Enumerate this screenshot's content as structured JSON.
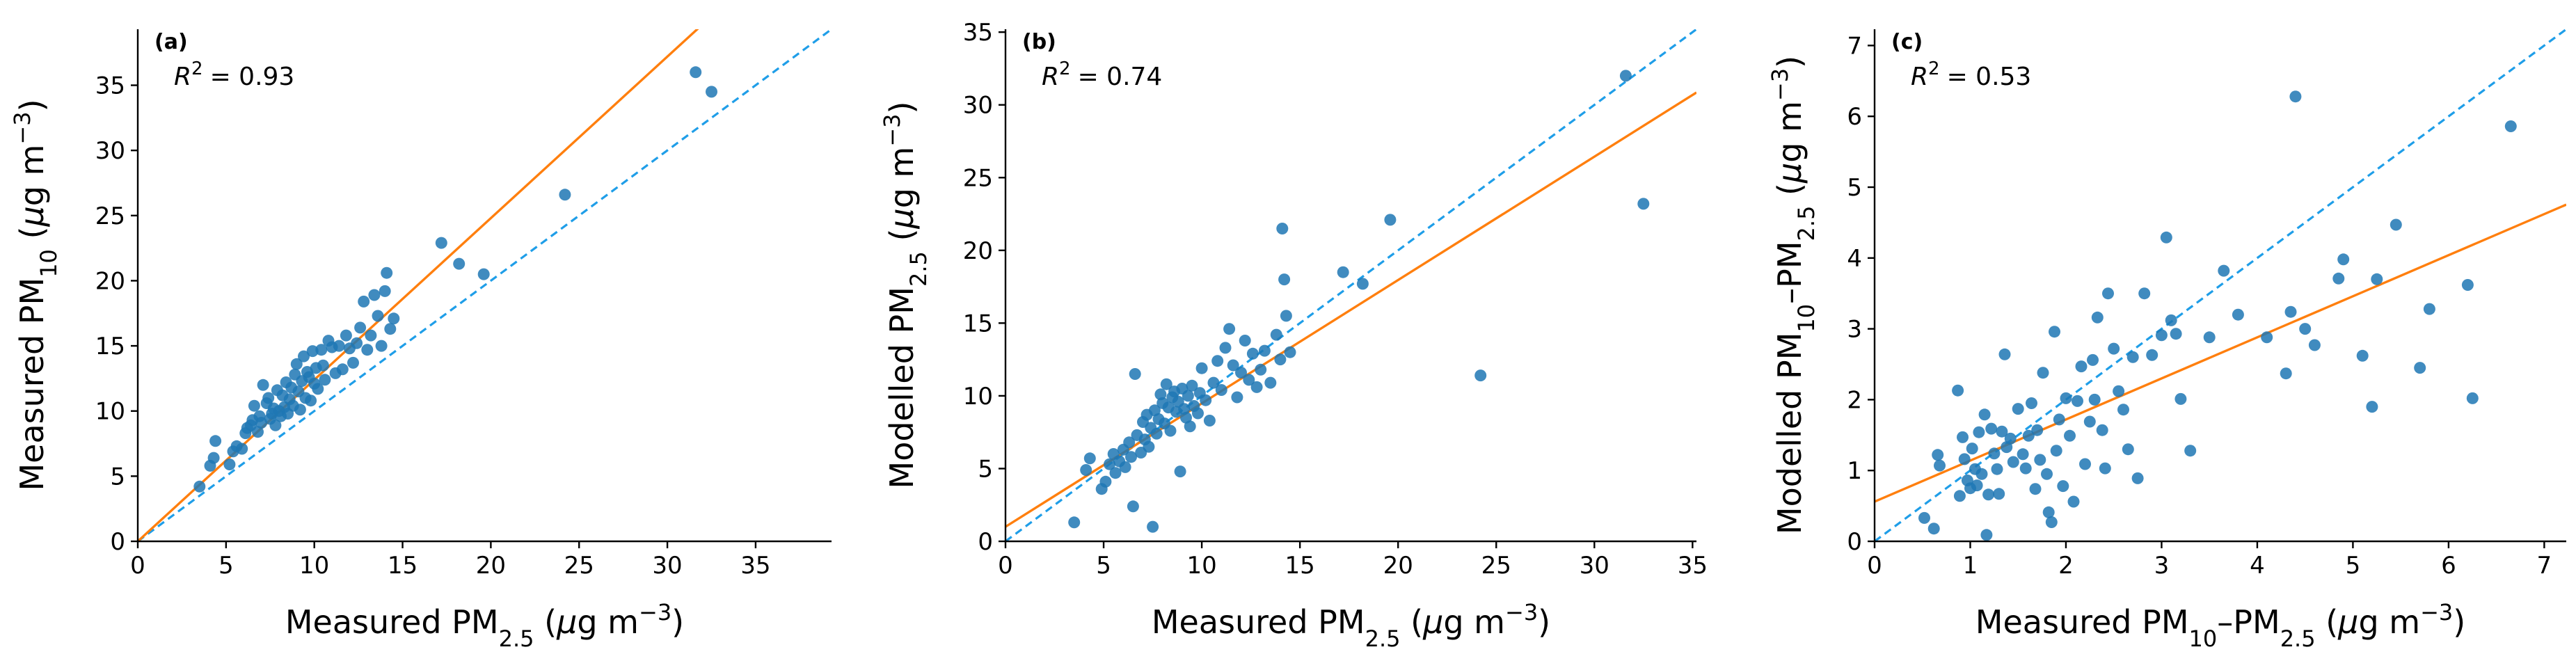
{
  "colors": {
    "points": "#1f77b4",
    "fit_line": "#ff7f0e",
    "one_to_one": "#1f9ee8"
  },
  "chart_data": [
    {
      "type": "scatter",
      "panel_label": "(a)",
      "r2_symbol": "R",
      "r2_value": "= 0.93",
      "xlabel": {
        "pre": "Measured PM",
        "sub": "2.5",
        "post": " (",
        "mu": "μ",
        "unit": "g m",
        "sup": "−3",
        "close": ")"
      },
      "ylabel": {
        "pre": "Measured PM",
        "sub": "10",
        "post": " (",
        "mu": "μ",
        "unit": "g m",
        "sup": "−3",
        "close": ")"
      },
      "xlim": [
        0,
        39.3
      ],
      "ylim": [
        0,
        39.3
      ],
      "xticks": [
        0,
        5,
        10,
        15,
        20,
        25,
        30,
        35
      ],
      "yticks": [
        0,
        5,
        10,
        15,
        20,
        25,
        30,
        35
      ],
      "fit_line": {
        "slope": 1.24,
        "intercept": 0.0
      },
      "one_to_one": true,
      "points": [
        [
          3.5,
          4.2
        ],
        [
          4.1,
          5.8
        ],
        [
          4.3,
          6.4
        ],
        [
          4.4,
          7.7
        ],
        [
          5.2,
          5.9
        ],
        [
          5.4,
          6.9
        ],
        [
          5.6,
          7.3
        ],
        [
          5.9,
          7.1
        ],
        [
          6.1,
          8.3
        ],
        [
          6.2,
          8.7
        ],
        [
          6.4,
          8.9
        ],
        [
          6.5,
          9.3
        ],
        [
          6.6,
          10.4
        ],
        [
          6.8,
          8.4
        ],
        [
          6.9,
          9.6
        ],
        [
          7.0,
          9.1
        ],
        [
          7.1,
          12.0
        ],
        [
          7.3,
          10.6
        ],
        [
          7.4,
          11.0
        ],
        [
          7.5,
          9.4
        ],
        [
          7.6,
          9.8
        ],
        [
          7.7,
          10.2
        ],
        [
          7.8,
          8.9
        ],
        [
          7.9,
          11.6
        ],
        [
          8.0,
          10.0
        ],
        [
          8.1,
          9.6
        ],
        [
          8.2,
          11.2
        ],
        [
          8.3,
          10.3
        ],
        [
          8.4,
          12.2
        ],
        [
          8.5,
          9.8
        ],
        [
          8.6,
          10.9
        ],
        [
          8.7,
          11.8
        ],
        [
          8.8,
          10.4
        ],
        [
          8.9,
          12.8
        ],
        [
          9.0,
          13.6
        ],
        [
          9.1,
          11.5
        ],
        [
          9.2,
          10.1
        ],
        [
          9.3,
          12.3
        ],
        [
          9.4,
          14.2
        ],
        [
          9.5,
          11.0
        ],
        [
          9.6,
          13.0
        ],
        [
          9.7,
          12.6
        ],
        [
          9.8,
          10.8
        ],
        [
          9.9,
          14.6
        ],
        [
          10.0,
          12.1
        ],
        [
          10.1,
          13.3
        ],
        [
          10.2,
          11.7
        ],
        [
          10.4,
          14.7
        ],
        [
          10.5,
          13.5
        ],
        [
          10.6,
          12.4
        ],
        [
          10.8,
          15.4
        ],
        [
          11.0,
          14.9
        ],
        [
          11.2,
          12.9
        ],
        [
          11.4,
          15.0
        ],
        [
          11.6,
          13.2
        ],
        [
          11.8,
          15.8
        ],
        [
          12.0,
          14.8
        ],
        [
          12.2,
          13.7
        ],
        [
          12.4,
          15.2
        ],
        [
          12.6,
          16.4
        ],
        [
          12.8,
          18.4
        ],
        [
          13.0,
          14.7
        ],
        [
          13.2,
          15.8
        ],
        [
          13.4,
          18.9
        ],
        [
          13.6,
          17.3
        ],
        [
          13.8,
          15.0
        ],
        [
          14.0,
          19.2
        ],
        [
          14.1,
          20.6
        ],
        [
          14.3,
          16.3
        ],
        [
          14.5,
          17.1
        ],
        [
          17.2,
          22.9
        ],
        [
          18.2,
          21.3
        ],
        [
          19.6,
          20.5
        ],
        [
          24.2,
          26.6
        ],
        [
          31.6,
          36.0
        ],
        [
          32.5,
          34.5
        ]
      ]
    },
    {
      "type": "scatter",
      "panel_label": "(b)",
      "r2_symbol": "R",
      "r2_value": "= 0.74",
      "xlabel": {
        "pre": "Measured PM",
        "sub": "2.5",
        "post": " (",
        "mu": "μ",
        "unit": "g m",
        "sup": "−3",
        "close": ")"
      },
      "ylabel": {
        "pre": "Modelled PM",
        "sub": "2.5",
        "post": " (",
        "mu": "μ",
        "unit": "g m",
        "sup": "−3",
        "close": ")"
      },
      "xlim": [
        0,
        35.2
      ],
      "ylim": [
        0,
        35.2
      ],
      "xticks": [
        0,
        5,
        10,
        15,
        20,
        25,
        30,
        35
      ],
      "yticks": [
        0,
        5,
        10,
        15,
        20,
        25,
        30,
        35
      ],
      "fit_line": {
        "slope": 0.848,
        "intercept": 1.0
      },
      "one_to_one": true,
      "points": [
        [
          3.5,
          1.3
        ],
        [
          4.1,
          4.9
        ],
        [
          4.3,
          5.7
        ],
        [
          4.9,
          3.6
        ],
        [
          5.1,
          4.1
        ],
        [
          5.3,
          5.3
        ],
        [
          5.5,
          6.0
        ],
        [
          5.6,
          4.7
        ],
        [
          5.8,
          5.5
        ],
        [
          6.0,
          6.3
        ],
        [
          6.1,
          5.1
        ],
        [
          6.3,
          6.8
        ],
        [
          6.4,
          5.8
        ],
        [
          6.5,
          2.4
        ],
        [
          6.6,
          11.5
        ],
        [
          6.7,
          7.3
        ],
        [
          6.9,
          6.1
        ],
        [
          7.0,
          8.2
        ],
        [
          7.1,
          7.0
        ],
        [
          7.2,
          8.7
        ],
        [
          7.3,
          6.5
        ],
        [
          7.4,
          7.8
        ],
        [
          7.5,
          1.0
        ],
        [
          7.6,
          9.0
        ],
        [
          7.7,
          7.4
        ],
        [
          7.8,
          8.4
        ],
        [
          7.9,
          10.1
        ],
        [
          8.0,
          9.5
        ],
        [
          8.1,
          8.1
        ],
        [
          8.2,
          10.8
        ],
        [
          8.3,
          9.2
        ],
        [
          8.4,
          7.6
        ],
        [
          8.5,
          9.9
        ],
        [
          8.6,
          10.3
        ],
        [
          8.7,
          8.9
        ],
        [
          8.8,
          9.6
        ],
        [
          8.9,
          4.8
        ],
        [
          9.0,
          10.5
        ],
        [
          9.1,
          9.1
        ],
        [
          9.2,
          8.5
        ],
        [
          9.3,
          10.0
        ],
        [
          9.4,
          7.9
        ],
        [
          9.5,
          10.7
        ],
        [
          9.6,
          9.3
        ],
        [
          9.8,
          8.8
        ],
        [
          9.9,
          10.2
        ],
        [
          10.0,
          11.9
        ],
        [
          10.2,
          9.7
        ],
        [
          10.4,
          8.3
        ],
        [
          10.6,
          10.9
        ],
        [
          10.8,
          12.4
        ],
        [
          11.0,
          10.4
        ],
        [
          11.2,
          13.3
        ],
        [
          11.4,
          14.6
        ],
        [
          11.6,
          12.1
        ],
        [
          11.8,
          9.9
        ],
        [
          12.0,
          11.6
        ],
        [
          12.2,
          13.8
        ],
        [
          12.4,
          11.1
        ],
        [
          12.6,
          12.9
        ],
        [
          12.8,
          10.6
        ],
        [
          13.0,
          11.8
        ],
        [
          13.2,
          13.1
        ],
        [
          13.5,
          10.9
        ],
        [
          13.8,
          14.2
        ],
        [
          14.0,
          12.5
        ],
        [
          14.1,
          21.5
        ],
        [
          14.2,
          18.0
        ],
        [
          14.3,
          15.5
        ],
        [
          14.5,
          13.0
        ],
        [
          17.2,
          18.5
        ],
        [
          18.2,
          17.7
        ],
        [
          19.6,
          22.1
        ],
        [
          24.2,
          11.4
        ],
        [
          31.6,
          32.0
        ],
        [
          32.5,
          23.2
        ]
      ]
    },
    {
      "type": "scatter",
      "panel_label": "(c)",
      "r2_symbol": "R",
      "r2_value": "= 0.53",
      "xlabel": {
        "pre": "Measured PM",
        "sub": "10",
        "mid": "–PM",
        "sub2": "2.5",
        "post": " (",
        "mu": "μ",
        "unit": "g m",
        "sup": "−3",
        "close": ")"
      },
      "ylabel": {
        "pre": "Modelled PM",
        "sub": "10",
        "mid": "–PM",
        "sub2": "2.5",
        "post": " (",
        "mu": "μ",
        "unit": "g m",
        "sup": "−3",
        "close": ")"
      },
      "xlim": [
        0,
        7.23
      ],
      "ylim": [
        0,
        7.23
      ],
      "xticks": [
        0,
        1,
        2,
        3,
        4,
        5,
        6,
        7
      ],
      "yticks": [
        0,
        1,
        2,
        3,
        4,
        5,
        6,
        7
      ],
      "fit_line": {
        "slope": 0.58,
        "intercept": 0.56
      },
      "one_to_one": true,
      "points": [
        [
          0.52,
          0.33
        ],
        [
          0.62,
          0.18
        ],
        [
          0.66,
          1.22
        ],
        [
          0.68,
          1.07
        ],
        [
          0.87,
          2.13
        ],
        [
          0.89,
          0.64
        ],
        [
          0.92,
          1.47
        ],
        [
          0.94,
          1.16
        ],
        [
          0.97,
          0.86
        ],
        [
          1.0,
          0.75
        ],
        [
          1.02,
          1.31
        ],
        [
          1.05,
          1.02
        ],
        [
          1.07,
          0.79
        ],
        [
          1.09,
          1.54
        ],
        [
          1.12,
          0.95
        ],
        [
          1.15,
          1.79
        ],
        [
          1.17,
          0.09
        ],
        [
          1.19,
          0.66
        ],
        [
          1.22,
          1.59
        ],
        [
          1.25,
          1.24
        ],
        [
          1.28,
          1.02
        ],
        [
          1.3,
          0.67
        ],
        [
          1.33,
          1.55
        ],
        [
          1.36,
          2.64
        ],
        [
          1.38,
          1.33
        ],
        [
          1.42,
          1.45
        ],
        [
          1.45,
          1.12
        ],
        [
          1.5,
          1.87
        ],
        [
          1.55,
          1.23
        ],
        [
          1.58,
          1.03
        ],
        [
          1.61,
          1.49
        ],
        [
          1.64,
          1.95
        ],
        [
          1.68,
          0.74
        ],
        [
          1.7,
          1.57
        ],
        [
          1.73,
          1.15
        ],
        [
          1.76,
          2.38
        ],
        [
          1.8,
          0.95
        ],
        [
          1.82,
          0.41
        ],
        [
          1.85,
          0.27
        ],
        [
          1.88,
          2.96
        ],
        [
          1.9,
          1.28
        ],
        [
          1.93,
          1.72
        ],
        [
          1.97,
          0.78
        ],
        [
          2.0,
          2.02
        ],
        [
          2.04,
          1.49
        ],
        [
          2.08,
          0.56
        ],
        [
          2.12,
          1.98
        ],
        [
          2.16,
          2.47
        ],
        [
          2.2,
          1.09
        ],
        [
          2.25,
          1.69
        ],
        [
          2.28,
          2.56
        ],
        [
          2.3,
          2.0
        ],
        [
          2.33,
          3.16
        ],
        [
          2.38,
          1.57
        ],
        [
          2.41,
          1.03
        ],
        [
          2.44,
          3.5
        ],
        [
          2.5,
          2.72
        ],
        [
          2.55,
          2.12
        ],
        [
          2.6,
          1.86
        ],
        [
          2.65,
          1.3
        ],
        [
          2.7,
          2.6
        ],
        [
          2.75,
          0.89
        ],
        [
          2.82,
          3.5
        ],
        [
          2.9,
          2.63
        ],
        [
          3.0,
          2.91
        ],
        [
          3.05,
          4.29
        ],
        [
          3.1,
          3.12
        ],
        [
          3.15,
          2.93
        ],
        [
          3.2,
          2.01
        ],
        [
          3.3,
          1.28
        ],
        [
          3.5,
          2.88
        ],
        [
          3.65,
          3.82
        ],
        [
          3.8,
          3.2
        ],
        [
          4.1,
          2.88
        ],
        [
          4.3,
          2.37
        ],
        [
          4.35,
          3.24
        ],
        [
          4.4,
          6.28
        ],
        [
          4.5,
          3.0
        ],
        [
          4.6,
          2.77
        ],
        [
          4.85,
          3.71
        ],
        [
          4.9,
          3.98
        ],
        [
          5.1,
          2.62
        ],
        [
          5.2,
          1.9
        ],
        [
          5.25,
          3.7
        ],
        [
          5.45,
          4.47
        ],
        [
          5.7,
          2.45
        ],
        [
          5.8,
          3.28
        ],
        [
          6.2,
          3.62
        ],
        [
          6.25,
          2.02
        ],
        [
          6.65,
          5.86
        ]
      ]
    }
  ]
}
